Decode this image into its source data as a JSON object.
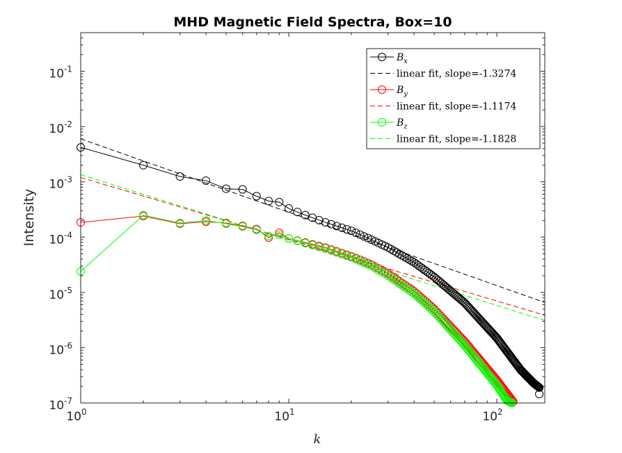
{
  "chart_data": {
    "type": "line",
    "title": "MHD Magnetic Field Spectra, Box=10",
    "xlabel": "k",
    "ylabel": "Intensity",
    "xscale": "log",
    "yscale": "log",
    "xlim": [
      1,
      170
    ],
    "ylim": [
      1e-07,
      0.5
    ],
    "x_ticks": [
      {
        "value": 1,
        "base": "10",
        "exp": "0"
      },
      {
        "value": 10,
        "base": "10",
        "exp": "1"
      },
      {
        "value": 100,
        "base": "10",
        "exp": "2"
      }
    ],
    "y_ticks": [
      {
        "value": 1e-07,
        "base": "10",
        "exp": "-7"
      },
      {
        "value": 1e-06,
        "base": "10",
        "exp": "-6"
      },
      {
        "value": 1e-05,
        "base": "10",
        "exp": "-5"
      },
      {
        "value": 0.0001,
        "base": "10",
        "exp": "-4"
      },
      {
        "value": 0.001,
        "base": "10",
        "exp": "-3"
      },
      {
        "value": 0.01,
        "base": "10",
        "exp": "-2"
      },
      {
        "value": 0.1,
        "base": "10",
        "exp": "-1"
      }
    ],
    "grid": false,
    "legend_position": "top-right",
    "series": [
      {
        "name": "Bx",
        "sym": "B",
        "sub": "x",
        "color": "#000000",
        "k_max": 160,
        "anchors": [
          [
            1,
            0.0042
          ],
          [
            2,
            0.002
          ],
          [
            3,
            0.00125
          ],
          [
            4,
            0.00105
          ],
          [
            5,
            0.00075
          ],
          [
            6,
            0.00073
          ],
          [
            7,
            0.00055
          ],
          [
            8,
            0.00045
          ],
          [
            9,
            0.00043
          ],
          [
            10,
            0.00033
          ],
          [
            12,
            0.00025
          ],
          [
            15,
            0.000185
          ],
          [
            20,
            0.00013
          ],
          [
            25,
            9e-05
          ],
          [
            30,
            6.5e-05
          ],
          [
            40,
            3.5e-05
          ],
          [
            50,
            1.9e-05
          ],
          [
            70,
            6.5e-06
          ],
          [
            100,
            1.5e-06
          ],
          [
            130,
            4e-07
          ],
          [
            150,
            2.3e-07
          ],
          [
            160,
            1.9e-07
          ]
        ],
        "extra_points": [
          [
            160,
            1.45e-07
          ]
        ],
        "fit_slope": -1.3274,
        "fit_intercept": 0.006,
        "fit_label": "linear fit, slope=-1.3274"
      },
      {
        "name": "By",
        "sym": "B",
        "sub": "y",
        "color": "#ff0000",
        "k_max": 120,
        "anchors": [
          [
            1,
            0.000185
          ],
          [
            2,
            0.00024
          ],
          [
            3,
            0.000175
          ],
          [
            4,
            0.00019
          ],
          [
            5,
            0.00018
          ],
          [
            6,
            0.00016
          ],
          [
            7,
            0.00014
          ],
          [
            8,
            9.8e-05
          ],
          [
            9,
            0.00012
          ],
          [
            10,
            9.5e-05
          ],
          [
            12,
            8e-05
          ],
          [
            15,
            6.5e-05
          ],
          [
            20,
            4.5e-05
          ],
          [
            25,
            3.2e-05
          ],
          [
            30,
            2.2e-05
          ],
          [
            40,
            1.05e-05
          ],
          [
            50,
            5e-06
          ],
          [
            70,
            1.3e-06
          ],
          [
            100,
            2.6e-07
          ],
          [
            115,
            1.3e-07
          ],
          [
            120,
            1.05e-07
          ]
        ],
        "extra_points": [],
        "fit_slope": -1.1174,
        "fit_intercept": 0.0012,
        "fit_label": "linear fit, slope=-1.1174"
      },
      {
        "name": "Bz",
        "sym": "B",
        "sub": "z",
        "color": "#00ff00",
        "k_max": 118,
        "anchors": [
          [
            1,
            2.4e-05
          ],
          [
            2,
            0.00025
          ],
          [
            3,
            0.00018
          ],
          [
            4,
            0.0002
          ],
          [
            5,
            0.000175
          ],
          [
            6,
            0.000155
          ],
          [
            7,
            0.000135
          ],
          [
            8,
            0.000105
          ],
          [
            9,
            0.00011
          ],
          [
            10,
            9.5e-05
          ],
          [
            12,
            7.8e-05
          ],
          [
            15,
            6.2e-05
          ],
          [
            20,
            4.3e-05
          ],
          [
            25,
            3e-05
          ],
          [
            30,
            2e-05
          ],
          [
            40,
            9.5e-06
          ],
          [
            50,
            4.5e-06
          ],
          [
            70,
            1.1e-06
          ],
          [
            100,
            2.1e-07
          ],
          [
            112,
            1.1e-07
          ],
          [
            118,
            1e-07
          ]
        ],
        "extra_points": [],
        "fit_slope": -1.1828,
        "fit_intercept": 0.00135,
        "fit_label": "linear fit, slope=-1.1828"
      }
    ]
  }
}
